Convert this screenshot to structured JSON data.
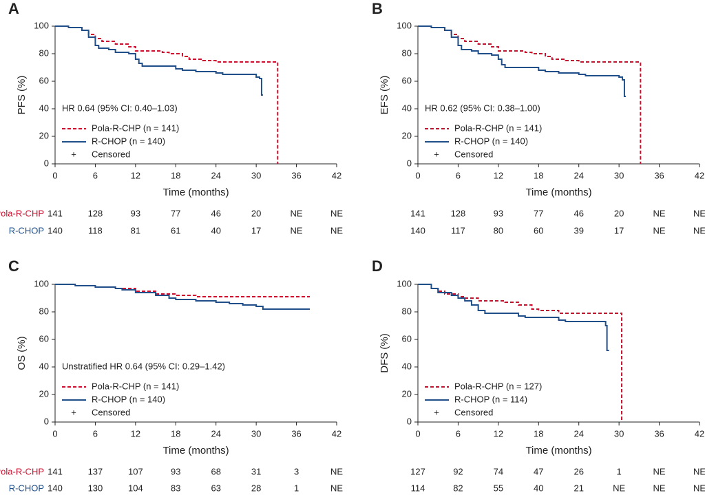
{
  "chart_data": [
    {
      "type": "line",
      "panel": "A",
      "ylabel": "PFS (%)",
      "xlabel": "Time (months)",
      "xlim": [
        0,
        42
      ],
      "ylim": [
        0,
        100
      ],
      "xticks": [
        0,
        6,
        12,
        18,
        24,
        30,
        36,
        42
      ],
      "yticks": [
        0,
        20,
        40,
        60,
        80,
        100
      ],
      "annotation": "HR 0.64 (95% CI: 0.40–1.03)",
      "censored_symbol": "+",
      "censored_label": "Censored",
      "series": [
        {
          "name": "Pola-R-CHP (n = 141)",
          "color": "#c8102e",
          "dash": true,
          "x": [
            0,
            2,
            4,
            5,
            6,
            7,
            9,
            11,
            12,
            16,
            17,
            19,
            20,
            22,
            24,
            33.2,
            33.2
          ],
          "values": [
            100,
            99,
            97,
            94,
            91,
            89,
            87,
            85,
            82,
            81,
            80,
            78,
            76,
            75,
            74,
            74,
            0
          ]
        },
        {
          "name": "R-CHOP (n = 140)",
          "color": "#1f4e89",
          "dash": false,
          "x": [
            0,
            2,
            4,
            5,
            6,
            6.5,
            8,
            9,
            11,
            12,
            12.5,
            13,
            18,
            19,
            21,
            24,
            25,
            30,
            30.5,
            30.8,
            31
          ],
          "values": [
            100,
            99,
            97,
            92,
            86,
            84,
            83,
            81,
            80,
            76,
            73,
            71,
            69,
            68,
            67,
            66,
            65,
            63,
            62,
            50,
            50
          ]
        }
      ],
      "risk_table_labels": [
        "Pola-R-CHP",
        "R-CHOP"
      ],
      "risk_table": [
        [
          141,
          128,
          93,
          77,
          46,
          20,
          "NE",
          "NE"
        ],
        [
          140,
          118,
          81,
          61,
          40,
          17,
          "NE",
          "NE"
        ]
      ]
    },
    {
      "type": "line",
      "panel": "B",
      "ylabel": "EFS (%)",
      "xlabel": "Time (months)",
      "xlim": [
        0,
        42
      ],
      "ylim": [
        0,
        100
      ],
      "xticks": [
        0,
        6,
        12,
        18,
        24,
        30,
        36,
        42
      ],
      "yticks": [
        0,
        20,
        40,
        60,
        80,
        100
      ],
      "annotation": "HR 0.62 (95% CI: 0.38–1.00)",
      "censored_symbol": "+",
      "censored_label": "Censored",
      "series": [
        {
          "name": "Pola-R-CHP (n = 141)",
          "color": "#c8102e",
          "dash": true,
          "x": [
            0,
            2,
            4,
            5,
            6,
            7,
            9,
            11,
            12,
            16,
            17,
            19,
            20,
            22,
            24,
            33.2,
            33.2
          ],
          "values": [
            100,
            99,
            97,
            94,
            91,
            89,
            87,
            85,
            82,
            81,
            80,
            78,
            76,
            75,
            74,
            74,
            0
          ]
        },
        {
          "name": "R-CHOP (n = 140)",
          "color": "#1f4e89",
          "dash": false,
          "x": [
            0,
            2,
            4,
            5,
            6,
            6.5,
            8,
            9,
            11,
            12,
            12.5,
            13,
            18,
            19,
            21,
            24,
            25,
            30,
            30.5,
            30.8,
            31
          ],
          "values": [
            100,
            99,
            97,
            92,
            86,
            83,
            82,
            80,
            79,
            76,
            72,
            70,
            68,
            67,
            66,
            65,
            64,
            63,
            61,
            49,
            49
          ]
        }
      ],
      "risk_table": [
        [
          141,
          128,
          93,
          77,
          46,
          20,
          "NE",
          "NE"
        ],
        [
          140,
          117,
          80,
          60,
          39,
          17,
          "NE",
          "NE"
        ]
      ]
    },
    {
      "type": "line",
      "panel": "C",
      "ylabel": "OS (%)",
      "xlabel": "Time (months)",
      "xlim": [
        0,
        42
      ],
      "ylim": [
        0,
        100
      ],
      "xticks": [
        0,
        6,
        12,
        18,
        24,
        30,
        36,
        42
      ],
      "yticks": [
        0,
        20,
        40,
        60,
        80,
        100
      ],
      "annotation": "Unstratified HR 0.64 (95% CI: 0.29–1.42)",
      "censored_symbol": "+",
      "censored_label": "Censored",
      "series": [
        {
          "name": "Pola-R-CHP (n = 141)",
          "color": "#c8102e",
          "dash": true,
          "x": [
            0,
            3,
            6,
            9,
            12,
            15,
            18,
            21,
            38
          ],
          "values": [
            100,
            99,
            98,
            97,
            95,
            93,
            92,
            91,
            91
          ]
        },
        {
          "name": "R-CHOP (n = 140)",
          "color": "#1f4e89",
          "dash": false,
          "x": [
            0,
            3,
            6,
            9,
            10,
            12,
            15,
            17,
            18,
            21,
            24,
            26,
            28,
            30,
            31,
            38
          ],
          "values": [
            100,
            99,
            98,
            97,
            96,
            94,
            92,
            90,
            89,
            88,
            87,
            86,
            85,
            84,
            82,
            82
          ]
        }
      ],
      "risk_table_labels": [
        "Pola-R-CHP",
        "R-CHOP"
      ],
      "risk_table": [
        [
          141,
          137,
          107,
          93,
          68,
          31,
          3,
          "NE"
        ],
        [
          140,
          130,
          104,
          83,
          63,
          28,
          1,
          "NE"
        ]
      ]
    },
    {
      "type": "line",
      "panel": "D",
      "ylabel": "DFS (%)",
      "xlabel": "Time (months)",
      "xlim": [
        0,
        42
      ],
      "ylim": [
        0,
        100
      ],
      "xticks": [
        0,
        6,
        12,
        18,
        24,
        30,
        36,
        42
      ],
      "yticks": [
        0,
        20,
        40,
        60,
        80,
        100
      ],
      "censored_symbol": "+",
      "censored_label": "Censored",
      "series": [
        {
          "name": "Pola-R-CHP (n = 127)",
          "color": "#c8102e",
          "dash": true,
          "x": [
            0,
            2,
            3,
            4,
            6,
            7,
            9,
            13,
            15,
            17,
            18,
            21,
            30.4,
            30.4
          ],
          "values": [
            100,
            97,
            95,
            93,
            91,
            90,
            88,
            87,
            85,
            82,
            81,
            79,
            79,
            0
          ]
        },
        {
          "name": "R-CHOP (n = 114)",
          "color": "#1f4e89",
          "dash": false,
          "x": [
            0,
            2,
            3,
            5,
            6,
            7,
            8,
            9,
            10,
            15,
            16,
            21,
            22,
            28,
            28.2,
            28.5
          ],
          "values": [
            100,
            97,
            94,
            92,
            90,
            88,
            85,
            81,
            79,
            77,
            76,
            74,
            73,
            70,
            52,
            52
          ]
        }
      ],
      "risk_table": [
        [
          127,
          92,
          74,
          47,
          26,
          1,
          "NE",
          "NE"
        ],
        [
          114,
          82,
          55,
          40,
          21,
          "NE",
          "NE",
          "NE"
        ]
      ]
    }
  ]
}
